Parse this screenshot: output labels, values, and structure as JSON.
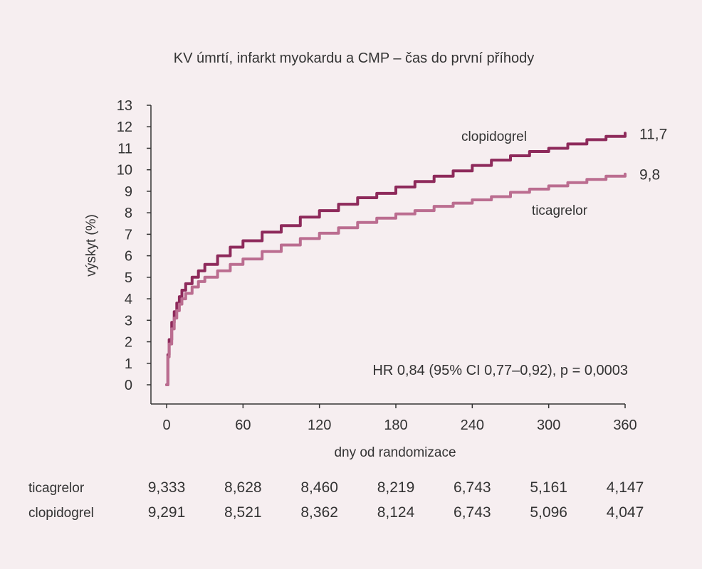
{
  "chart_data": {
    "type": "line",
    "title": "KV úmrtí, infarkt myokardu a CMP – čas do první příhody",
    "xlabel": "dny od randomizace",
    "ylabel": "výskyt (%)",
    "xlim": [
      0,
      360
    ],
    "ylim": [
      0,
      13
    ],
    "x_ticks": [
      "0",
      "60",
      "120",
      "180",
      "240",
      "300",
      "360"
    ],
    "y_ticks": [
      "0",
      "1",
      "2",
      "3",
      "4",
      "5",
      "6",
      "7",
      "8",
      "9",
      "10",
      "11",
      "12",
      "13"
    ],
    "grid": false,
    "series": [
      {
        "name": "clopidogrel",
        "end_label": "11,7",
        "color": "#8e2a5b",
        "x": [
          0,
          1,
          2,
          4,
          6,
          8,
          10,
          12,
          15,
          20,
          25,
          30,
          40,
          50,
          60,
          75,
          90,
          105,
          120,
          135,
          150,
          165,
          180,
          195,
          210,
          225,
          240,
          255,
          270,
          285,
          300,
          315,
          330,
          345,
          360
        ],
        "y": [
          0,
          1.4,
          2.1,
          2.9,
          3.4,
          3.8,
          4.1,
          4.4,
          4.7,
          5.0,
          5.3,
          5.6,
          6.0,
          6.4,
          6.7,
          7.1,
          7.4,
          7.8,
          8.1,
          8.4,
          8.7,
          8.9,
          9.2,
          9.45,
          9.7,
          9.95,
          10.2,
          10.45,
          10.65,
          10.85,
          11.0,
          11.2,
          11.4,
          11.55,
          11.7
        ]
      },
      {
        "name": "ticagrelor",
        "end_label": "9,8",
        "color": "#bb6d90",
        "x": [
          0,
          1,
          2,
          4,
          6,
          8,
          10,
          12,
          15,
          20,
          25,
          30,
          40,
          50,
          60,
          75,
          90,
          105,
          120,
          135,
          150,
          165,
          180,
          195,
          210,
          225,
          240,
          255,
          270,
          285,
          300,
          315,
          330,
          345,
          360
        ],
        "y": [
          0,
          1.3,
          1.9,
          2.6,
          3.1,
          3.45,
          3.75,
          4.0,
          4.25,
          4.55,
          4.8,
          5.0,
          5.3,
          5.6,
          5.85,
          6.2,
          6.5,
          6.8,
          7.05,
          7.3,
          7.55,
          7.75,
          7.95,
          8.1,
          8.3,
          8.45,
          8.6,
          8.75,
          8.95,
          9.1,
          9.25,
          9.4,
          9.55,
          9.7,
          9.8
        ]
      }
    ],
    "annotation": "HR 0,84 (95% CI 0,77–0,92), p = 0,0003",
    "risk_table": [
      {
        "name": "ticagrelor",
        "values": [
          "9,333",
          "8,628",
          "8,460",
          "8,219",
          "6,743",
          "5,161",
          "4,147"
        ]
      },
      {
        "name": "clopidogrel",
        "values": [
          "9,291",
          "8,521",
          "8,362",
          "8,124",
          "6,743",
          "5,096",
          "4,047"
        ]
      }
    ],
    "axis_color": "#333333",
    "background": "#f6eef0"
  }
}
